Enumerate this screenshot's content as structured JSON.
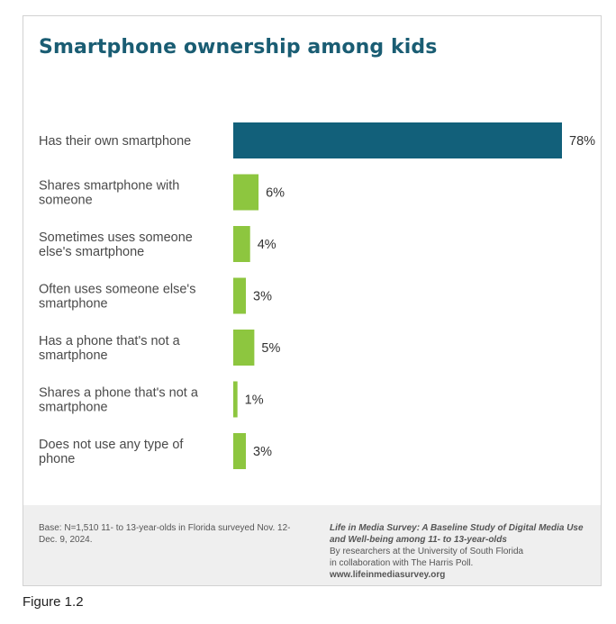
{
  "chart": {
    "title": "Smartphone ownership among kids"
  },
  "chart_data": {
    "type": "bar",
    "orientation": "horizontal",
    "title": "Smartphone ownership among kids",
    "categories": [
      [
        "Has their own smartphone"
      ],
      [
        "Shares smartphone with",
        "someone"
      ],
      [
        "Sometimes uses someone",
        "else's smartphone"
      ],
      [
        "Often uses someone else's",
        "smartphone"
      ],
      [
        "Has a phone that's not a",
        "smartphone"
      ],
      [
        "Shares a phone that's not a",
        "smartphone"
      ],
      [
        "Does not use any type of",
        "phone"
      ]
    ],
    "values": [
      78,
      6,
      4,
      3,
      5,
      1,
      3
    ],
    "value_labels": [
      "78%",
      "6%",
      "4%",
      "3%",
      "5%",
      "1%",
      "3%"
    ],
    "bar_colors": [
      "#12607a",
      "#8dc63f",
      "#8dc63f",
      "#8dc63f",
      "#8dc63f",
      "#8dc63f",
      "#8dc63f"
    ],
    "xlim": [
      0,
      100
    ],
    "grid": false,
    "legend": "none"
  },
  "footer": {
    "base_note": "Base: N=1,510 11- to 13-year-olds in Florida surveyed Nov. 12-Dec. 9, 2024.",
    "source_title": "Life in Media Survey: A Baseline Study of Digital Media Use and Well-being among 11- to 13-year-olds",
    "source_line1": "By researchers at the University of South Florida",
    "source_line2": "in collaboration with The Harris Poll.",
    "source_url": "www.lifeinmediasurvey.org"
  },
  "figure_caption": "Figure 1.2"
}
